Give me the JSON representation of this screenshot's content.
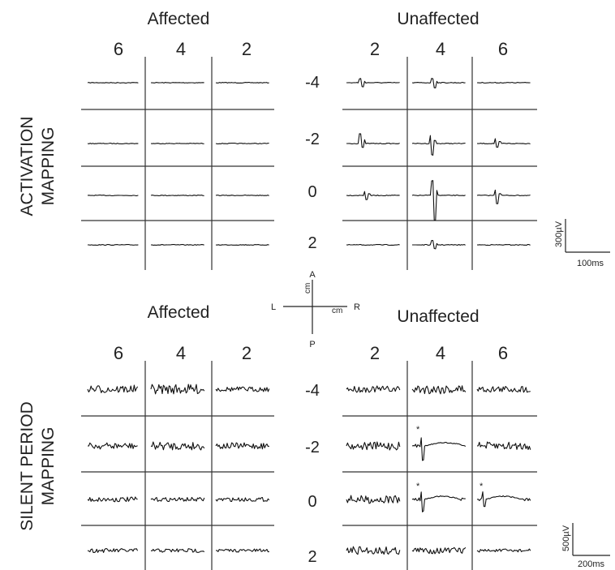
{
  "activation": {
    "side_label_line1": "ACTIVATION",
    "side_label_line2": "MAPPING",
    "affected_title": "Affected",
    "unaffected_title": "Unaffected",
    "affected_cols": [
      "6",
      "4",
      "2"
    ],
    "unaffected_cols": [
      "2",
      "4",
      "6"
    ],
    "rows": [
      "-4",
      "-2",
      "0",
      "2"
    ],
    "scale_y": "300µV",
    "scale_x": "100ms"
  },
  "silent": {
    "side_label_line1": "SILENT PERIOD",
    "side_label_line2": "MAPPING",
    "side_mark": "'",
    "affected_title": "Affected",
    "unaffected_title": "Unaffected",
    "affected_cols": [
      "6",
      "4",
      "2"
    ],
    "unaffected_cols": [
      "2",
      "4",
      "6"
    ],
    "rows": [
      "-4",
      "-2",
      "0",
      "2"
    ],
    "asterisk": "*",
    "scale_y": "500µV",
    "scale_x": "200ms"
  },
  "compass": {
    "a": "A",
    "p": "P",
    "l": "L",
    "r": "R",
    "cm_v": "cm",
    "cm_h": "cm"
  }
}
